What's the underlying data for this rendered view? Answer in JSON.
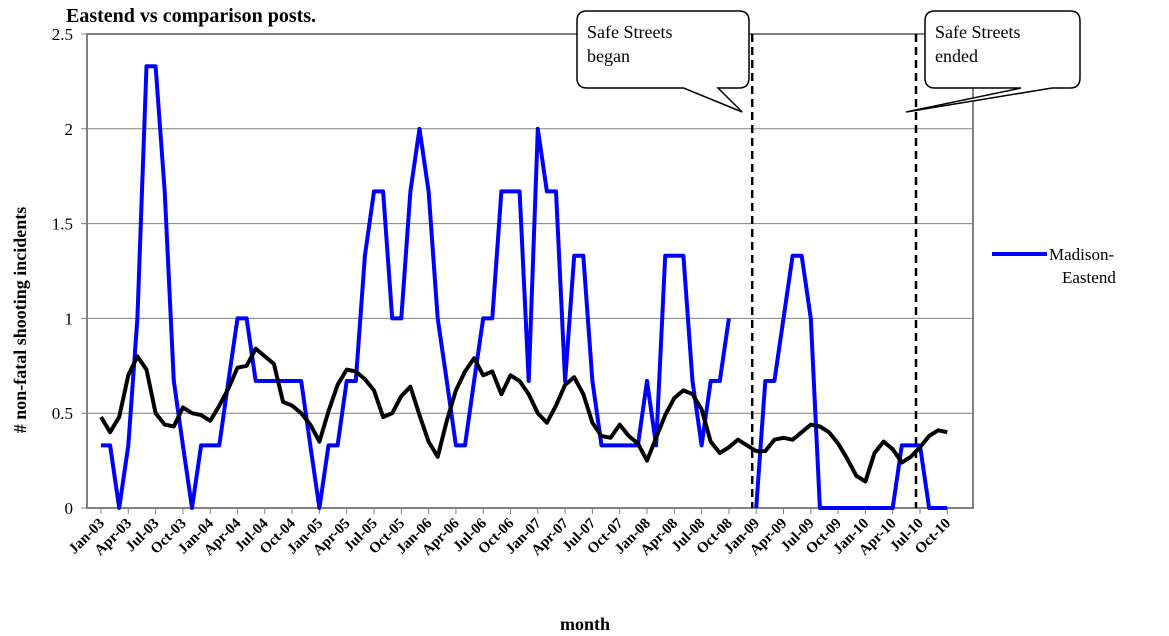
{
  "chart_data": {
    "type": "line",
    "title": "Eastend vs comparison posts.",
    "xlabel": "month",
    "ylabel": "# non-fatal shooting incidents",
    "ylim": [
      0,
      2.5
    ],
    "y_ticks": [
      "0",
      "0.5",
      "1",
      "1.5",
      "2",
      "2.5"
    ],
    "x_tick_labels": [
      "Jan-03",
      "Apr-03",
      "Jul-03",
      "Oct-03",
      "Jan-04",
      "Apr-04",
      "Jul-04",
      "Oct-04",
      "Jan-05",
      "Apr-05",
      "Jul-05",
      "Oct-05",
      "Jan-06",
      "Apr-06",
      "Jul-06",
      "Oct-06",
      "Jan-07",
      "Apr-07",
      "Jul-07",
      "Oct-07",
      "Jan-08",
      "Apr-08",
      "Jul-08",
      "Oct-08",
      "Jan-09",
      "Apr-09",
      "Jul-09",
      "Oct-09",
      "Jan-10",
      "Apr-10",
      "Jul-10",
      "Oct-10"
    ],
    "grid": "horizontal",
    "legend_position": "right",
    "series": [
      {
        "name": "Madison-Eastend",
        "color": "#0000ff",
        "values": [
          0.33,
          0.33,
          0,
          0.33,
          1,
          2.33,
          2.33,
          1.67,
          0.67,
          0.33,
          0,
          0.33,
          0.33,
          0.33,
          0.67,
          1,
          1,
          0.67,
          0.67,
          0.67,
          0.67,
          0.67,
          0.67,
          0.33,
          0,
          0.33,
          0.33,
          0.67,
          0.67,
          1.33,
          1.67,
          1.67,
          1,
          1,
          1.67,
          2,
          1.67,
          1,
          0.67,
          0.33,
          0.33,
          0.67,
          1,
          1,
          1.67,
          1.67,
          1.67,
          0.67,
          2,
          1.67,
          1.67,
          0.67,
          1.33,
          1.33,
          0.67,
          0.33,
          0.33,
          0.33,
          0.33,
          0.33,
          0.67,
          0.33,
          1.33,
          1.33,
          1.33,
          0.67,
          0.33,
          0.67,
          0.67,
          1,
          null,
          null,
          0,
          0.67,
          0.67,
          1,
          1.33,
          1.33,
          1,
          0,
          0,
          0,
          0,
          0,
          0,
          0,
          0,
          0,
          0.33,
          0.33,
          0.33,
          0,
          0,
          0
        ]
      },
      {
        "name": "",
        "color": "#000000",
        "values": [
          0.48,
          0.4,
          0.48,
          0.7,
          0.8,
          0.73,
          0.5,
          0.44,
          0.43,
          0.53,
          0.5,
          0.49,
          0.46,
          0.54,
          0.63,
          0.74,
          0.75,
          0.84,
          0.8,
          0.76,
          0.56,
          0.54,
          0.5,
          0.44,
          0.35,
          0.51,
          0.65,
          0.73,
          0.72,
          0.68,
          0.62,
          0.48,
          0.5,
          0.59,
          0.64,
          0.49,
          0.35,
          0.27,
          0.46,
          0.62,
          0.72,
          0.79,
          0.7,
          0.72,
          0.6,
          0.7,
          0.67,
          0.6,
          0.5,
          0.45,
          0.54,
          0.65,
          0.69,
          0.6,
          0.45,
          0.38,
          0.37,
          0.44,
          0.38,
          0.34,
          0.25,
          0.37,
          0.49,
          0.58,
          0.62,
          0.6,
          0.52,
          0.35,
          0.29,
          0.32,
          0.36,
          0.33,
          0.3,
          0.3,
          0.36,
          0.37,
          0.36,
          0.4,
          0.44,
          0.43,
          0.4,
          0.34,
          0.26,
          0.17,
          0.14,
          0.29,
          0.35,
          0.31,
          0.24,
          0.27,
          0.32,
          0.38,
          0.41,
          0.4
        ]
      }
    ],
    "annotations": [
      {
        "text_line1": "Safe Streets",
        "text_line2": "began",
        "x_index": 72
      },
      {
        "text_line1": "Safe Streets",
        "text_line2": "ended",
        "x_index": 90
      }
    ]
  }
}
